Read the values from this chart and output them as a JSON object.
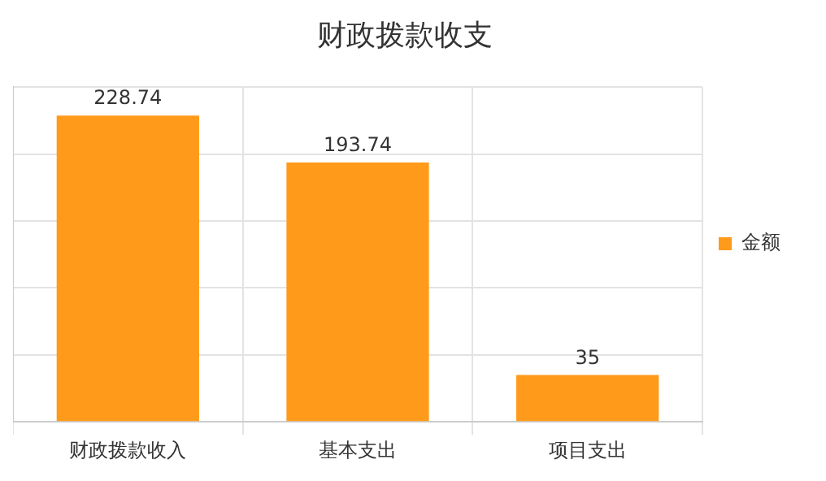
{
  "chart_data": {
    "type": "bar",
    "title": "财政拨款收支",
    "categories": [
      "财政拨款收入",
      "基本支出",
      "项目支出"
    ],
    "series": [
      {
        "name": "金额",
        "color": "#ff9a1a",
        "values": [
          228.74,
          193.74,
          35
        ]
      }
    ],
    "ylim": [
      0,
      250
    ],
    "yticks": [
      {
        "value": 0,
        "label": null
      },
      {
        "value": 50,
        "label": null
      },
      {
        "value": 100,
        "label": null
      },
      {
        "value": 150,
        "label": null
      },
      {
        "value": 200,
        "label": null
      },
      {
        "value": 250,
        "label": null
      }
    ],
    "tick_labels": "x",
    "grid": true,
    "legend": "right",
    "data_labels": true
  }
}
